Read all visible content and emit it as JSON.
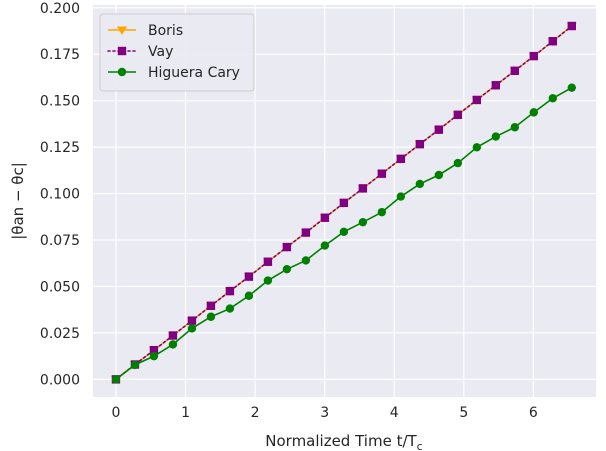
{
  "chart_data": {
    "type": "line",
    "xlabel": "Normalized Time t/T",
    "xlabel_sub": "c",
    "ylabel": "|θan − θc|",
    "xlim": [
      -0.33,
      6.9
    ],
    "ylim": [
      -0.0095,
      0.2015
    ],
    "xticks": [
      0,
      1,
      2,
      3,
      4,
      5,
      6
    ],
    "yticks": [
      "0.000",
      "0.025",
      "0.050",
      "0.075",
      "0.100",
      "0.125",
      "0.150",
      "0.175",
      "0.200"
    ],
    "grid": true,
    "legend_position": "top-left",
    "series": [
      {
        "name": "Boris",
        "color": "#ffa500",
        "marker": "triangle-down",
        "style": "solid",
        "x": [
          0,
          0.273,
          0.546,
          0.819,
          1.092,
          1.365,
          1.638,
          1.911,
          2.184,
          2.457,
          2.73,
          3.003,
          3.276,
          3.549,
          3.822,
          4.095,
          4.368,
          4.641,
          4.914,
          5.187,
          5.46,
          5.733,
          6.006,
          6.279,
          6.552
        ],
        "y": [
          0,
          0.008,
          0.0157,
          0.0236,
          0.0316,
          0.0396,
          0.0475,
          0.0553,
          0.0633,
          0.0712,
          0.079,
          0.087,
          0.095,
          0.1028,
          0.1107,
          0.1187,
          0.1266,
          0.1344,
          0.1424,
          0.1504,
          0.1583,
          0.1661,
          0.174,
          0.182,
          0.1902
        ]
      },
      {
        "name": "Vay",
        "color": "#800080",
        "marker": "square",
        "style": "dotted",
        "x": [
          0,
          0.273,
          0.546,
          0.819,
          1.092,
          1.365,
          1.638,
          1.911,
          2.184,
          2.457,
          2.73,
          3.003,
          3.276,
          3.549,
          3.822,
          4.095,
          4.368,
          4.641,
          4.914,
          5.187,
          5.46,
          5.733,
          6.006,
          6.279,
          6.552
        ],
        "y": [
          0,
          0.008,
          0.0157,
          0.0236,
          0.0316,
          0.0396,
          0.0475,
          0.0553,
          0.0633,
          0.0712,
          0.079,
          0.087,
          0.095,
          0.1028,
          0.1107,
          0.1187,
          0.1266,
          0.1344,
          0.1424,
          0.1504,
          0.1583,
          0.1661,
          0.174,
          0.182,
          0.1902
        ]
      },
      {
        "name": "Higuera Cary",
        "color": "#008000",
        "marker": "circle",
        "style": "solid",
        "x": [
          0,
          0.273,
          0.546,
          0.819,
          1.092,
          1.365,
          1.638,
          1.911,
          2.184,
          2.457,
          2.73,
          3.003,
          3.276,
          3.549,
          3.822,
          4.095,
          4.368,
          4.641,
          4.914,
          5.187,
          5.46,
          5.733,
          6.006,
          6.279,
          6.552
        ],
        "y": [
          0,
          0.0078,
          0.0125,
          0.0188,
          0.0274,
          0.0337,
          0.0381,
          0.045,
          0.0532,
          0.0593,
          0.064,
          0.072,
          0.0794,
          0.0846,
          0.09,
          0.0984,
          0.1052,
          0.11,
          0.1164,
          0.1249,
          0.1307,
          0.1357,
          0.1437,
          0.1513,
          0.157
        ]
      }
    ]
  }
}
